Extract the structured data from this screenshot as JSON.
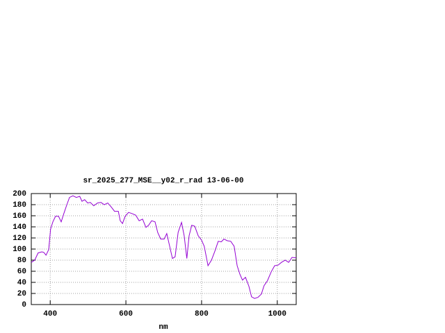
{
  "chart_data": {
    "type": "line",
    "title": "sr_2025_277_MSE__y02_r_rad 13-06-00",
    "x_label": "nm",
    "x": [
      350,
      359,
      368,
      378,
      383,
      389,
      396,
      401,
      407,
      414,
      422,
      429,
      436,
      444,
      451,
      460,
      469,
      478,
      484,
      491,
      499,
      506,
      515,
      525,
      534,
      543,
      552,
      561,
      570,
      580,
      585,
      591,
      598,
      607,
      616,
      626,
      635,
      644,
      653,
      660,
      668,
      677,
      684,
      692,
      701,
      708,
      716,
      723,
      730,
      738,
      747,
      754,
      761,
      767,
      774,
      782,
      791,
      800,
      807,
      817,
      826,
      835,
      844,
      852,
      859,
      868,
      877,
      886,
      894,
      901,
      908,
      916,
      925,
      932,
      940,
      949,
      958,
      965,
      974,
      984,
      993,
      1002,
      1011,
      1021,
      1030,
      1039,
      1050
    ],
    "series": [
      {
        "color": "#9400d3",
        "values": [
          76,
          80,
          93,
          95,
          94,
          89,
          99,
          136,
          149,
          159,
          159,
          149,
          164,
          180,
          193,
          196,
          193,
          195,
          186,
          189,
          183,
          184,
          178,
          183,
          184,
          180,
          183,
          176,
          168,
          168,
          151,
          146,
          159,
          166,
          164,
          161,
          151,
          154,
          139,
          143,
          151,
          149,
          130,
          118,
          118,
          128,
          104,
          83,
          86,
          130,
          148,
          124,
          83,
          124,
          143,
          141,
          124,
          116,
          105,
          70,
          80,
          96,
          114,
          113,
          118,
          115,
          114,
          105,
          70,
          55,
          44,
          49,
          33,
          14,
          11,
          13,
          19,
          34,
          43,
          59,
          70,
          71,
          76,
          80,
          76,
          85,
          84
        ]
      }
    ],
    "xlim": [
      350,
      1050
    ],
    "xticks": [
      400,
      600,
      800,
      1000
    ],
    "ylim": [
      0,
      200
    ],
    "yticks": [
      0,
      20,
      40,
      60,
      80,
      100,
      120,
      140,
      160,
      180,
      200
    ],
    "grid": true
  }
}
